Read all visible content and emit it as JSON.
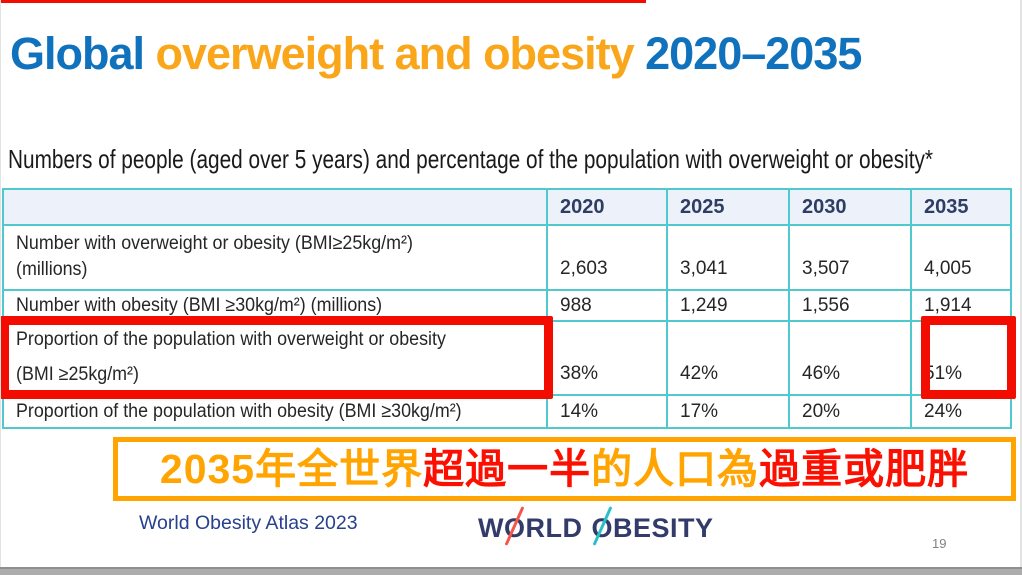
{
  "colors": {
    "title_blue": "#1072BC",
    "title_orange": "#FAA61A",
    "subtitle_text": "#1A1A1A",
    "table_text": "#262626",
    "header_navy": "#2E3D63",
    "header_bg": "#EDF1F9",
    "table_border_teal": "#4FC9CE",
    "annotation_red": "#F20D00",
    "banner_border_orange": "#FFA400",
    "banner_text_orange": "#FFA400",
    "banner_text_red": "#FB0F00",
    "footer_blue": "#27418D",
    "logo_navy": "#323B69",
    "logo_slash_red": "#F4564A",
    "logo_slash_teal": "#29BFC7",
    "page_number_gray": "#808080"
  },
  "title": {
    "part1": "Global ",
    "part2": "overweight and obesity ",
    "part3": "2020–2035"
  },
  "subtitle": "Numbers of people (aged over 5 years) and percentage of the population with overweight or obesity*",
  "table": {
    "col_headers": [
      "2020",
      "2025",
      "2030",
      "2035"
    ],
    "rows": [
      {
        "label_line1": "Number with overweight or obesity (BMI≥25kg/m²)",
        "label_line2": "(millions)",
        "values": [
          "2,603",
          "3,041",
          "3,507",
          "4,005"
        ]
      },
      {
        "label_line1": "Number with obesity (BMI ≥30kg/m²) (millions)",
        "values": [
          "988",
          "1,249",
          "1,556",
          "1,914"
        ]
      },
      {
        "label_line1": "Proportion of the population with overweight or obesity",
        "label_line2": "(BMI ≥25kg/m²)",
        "values": [
          "38%",
          "42%",
          "46%",
          "51%"
        ]
      },
      {
        "label_line1": "Proportion of the population with obesity (BMI ≥30kg/m²)",
        "values": [
          "14%",
          "17%",
          "20%",
          "24%"
        ]
      }
    ]
  },
  "banner": {
    "segments": [
      {
        "text": "2035年全世界",
        "color": "orange"
      },
      {
        "text": "超過一半",
        "color": "red"
      },
      {
        "text": "的人口為",
        "color": "orange"
      },
      {
        "text": "過重或肥胖",
        "color": "red"
      }
    ]
  },
  "footer": {
    "source": "World Obesity Atlas 2023",
    "logo": {
      "word1_pre": "W",
      "word1_o": "O",
      "word1_post": "RLD",
      "word2_o": "O",
      "word2_post": "BESITY"
    },
    "page_number": "19"
  }
}
